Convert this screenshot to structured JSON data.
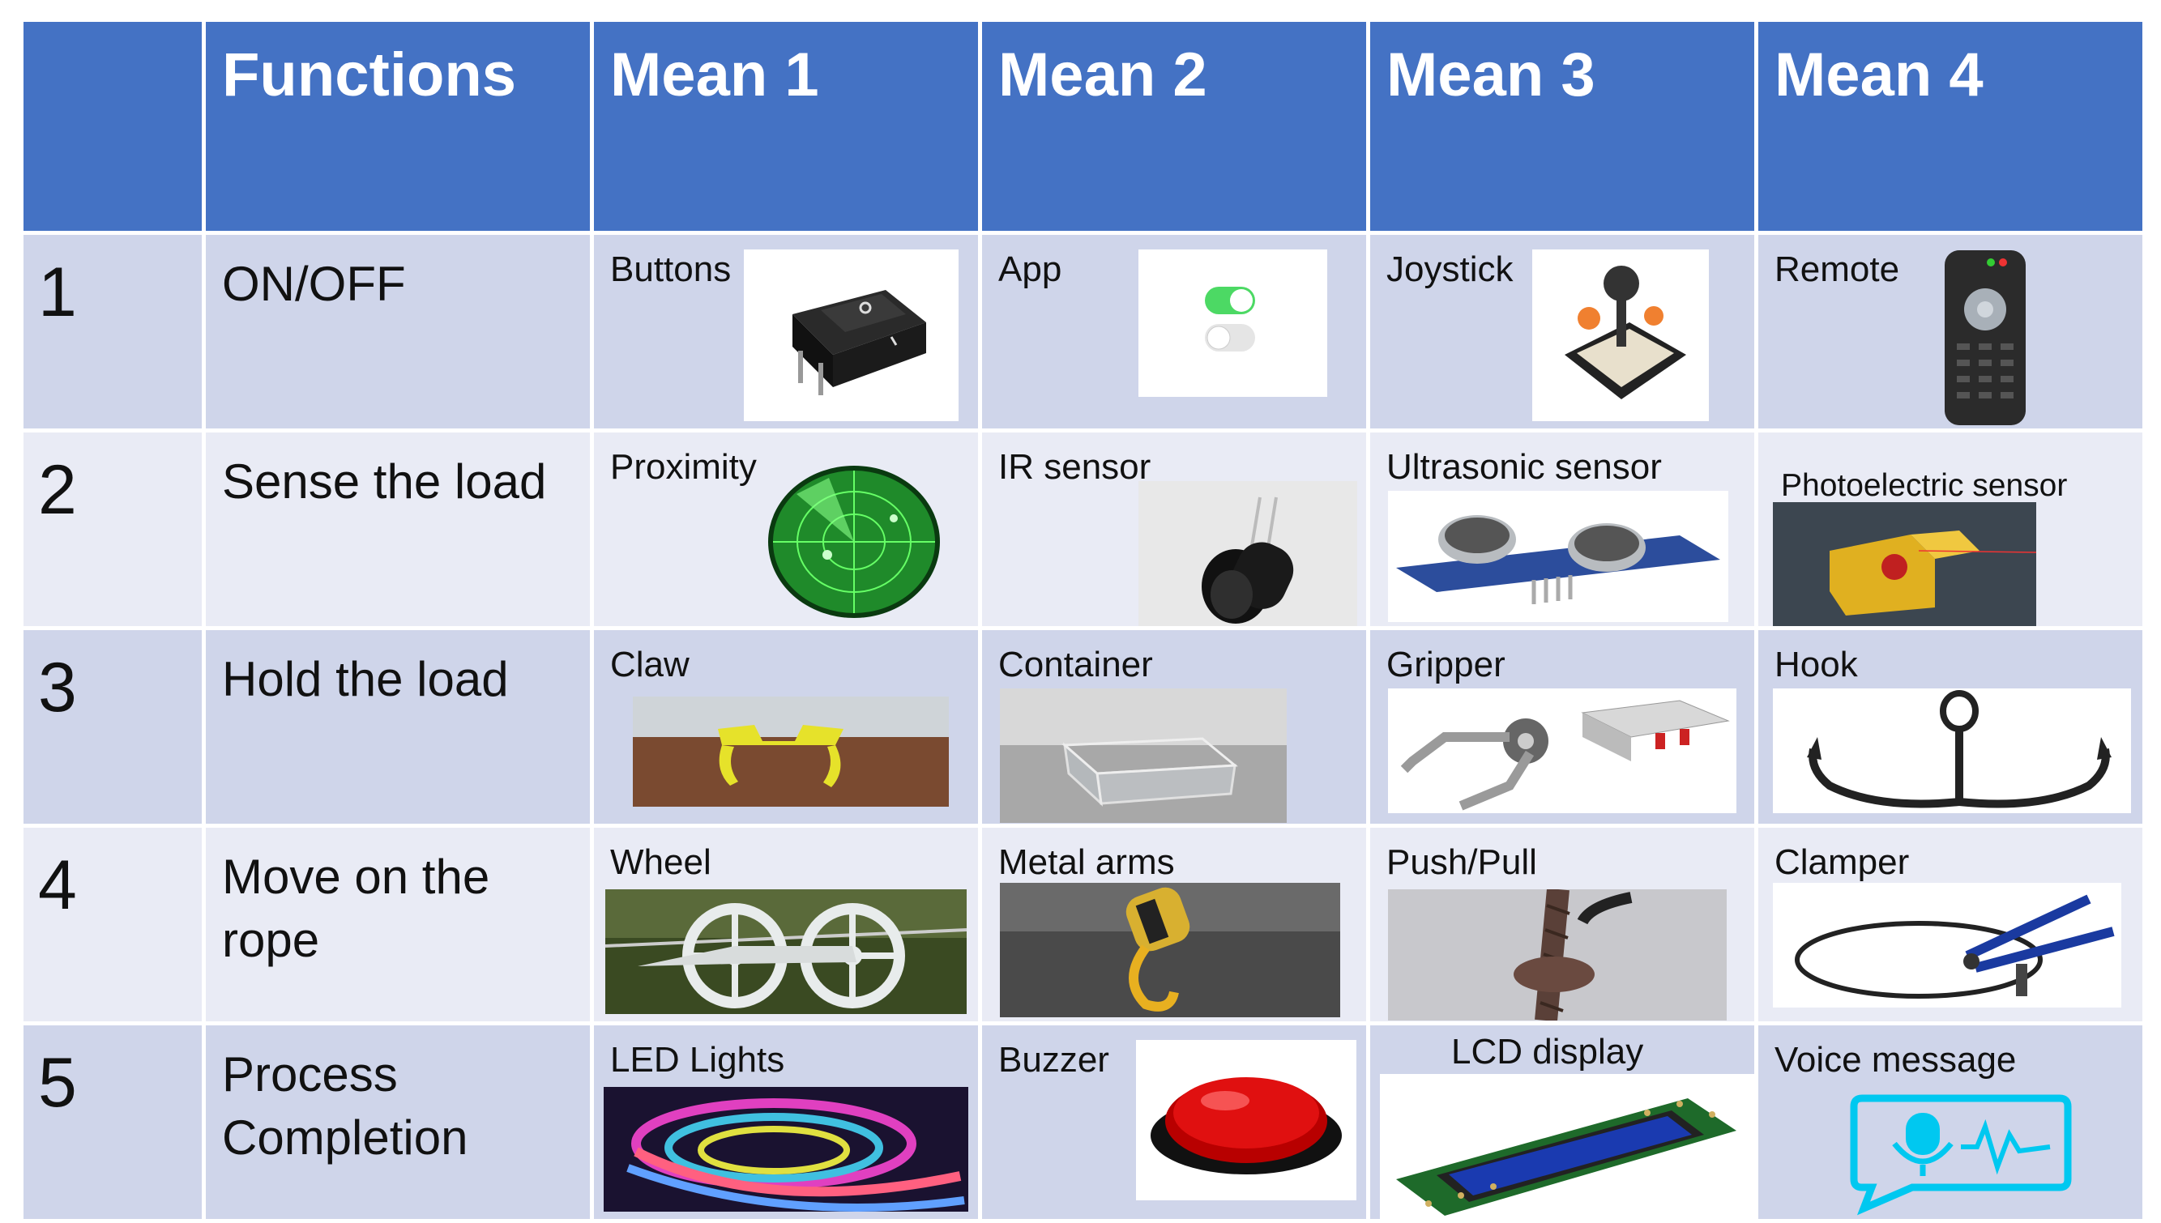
{
  "header": {
    "blank": "",
    "functions": "Functions",
    "means": [
      "Mean 1",
      "Mean 2",
      "Mean 3",
      "Mean 4"
    ]
  },
  "rows": [
    {
      "num": "1",
      "function": "ON/OFF",
      "means": [
        {
          "label": "Buttons",
          "icon": "rocker-switch-icon"
        },
        {
          "label": "App",
          "icon": "toggle-switch-icon"
        },
        {
          "label": "Joystick",
          "icon": "joystick-icon"
        },
        {
          "label": "Remote",
          "icon": "remote-control-icon"
        }
      ]
    },
    {
      "num": "2",
      "function": "Sense the load",
      "means": [
        {
          "label": "Proximity",
          "icon": "radar-icon"
        },
        {
          "label": "IR sensor",
          "icon": "ir-sensor-icon"
        },
        {
          "label": "Ultrasonic sensor",
          "icon": "ultrasonic-sensor-icon"
        },
        {
          "label": "Photoelectric sensor",
          "icon": "photoelectric-sensor-icon"
        }
      ]
    },
    {
      "num": "3",
      "function": "Hold the load",
      "means": [
        {
          "label": "Claw",
          "icon": "claw-icon"
        },
        {
          "label": "Container",
          "icon": "container-icon"
        },
        {
          "label": "Gripper",
          "icon": "gripper-icon"
        },
        {
          "label": "Hook",
          "icon": "hook-icon"
        }
      ]
    },
    {
      "num": "4",
      "function": "Move on the rope",
      "means": [
        {
          "label": "Wheel",
          "icon": "pulley-wheel-icon"
        },
        {
          "label": "Metal arms",
          "icon": "metal-arm-icon"
        },
        {
          "label": "Push/Pull",
          "icon": "rope-pull-icon"
        },
        {
          "label": "Clamper",
          "icon": "clamper-icon"
        }
      ]
    },
    {
      "num": "5",
      "function": "Process Completion",
      "means": [
        {
          "label": "LED Lights",
          "icon": "led-strip-icon"
        },
        {
          "label": "Buzzer",
          "icon": "buzzer-icon"
        },
        {
          "label": "LCD display",
          "icon": "lcd-display-icon"
        },
        {
          "label": "Voice message",
          "icon": "voice-message-icon"
        }
      ]
    }
  ],
  "colors": {
    "header": "#4472c4",
    "row_odd": "#cfd5ea",
    "row_even": "#e9ebf5"
  }
}
